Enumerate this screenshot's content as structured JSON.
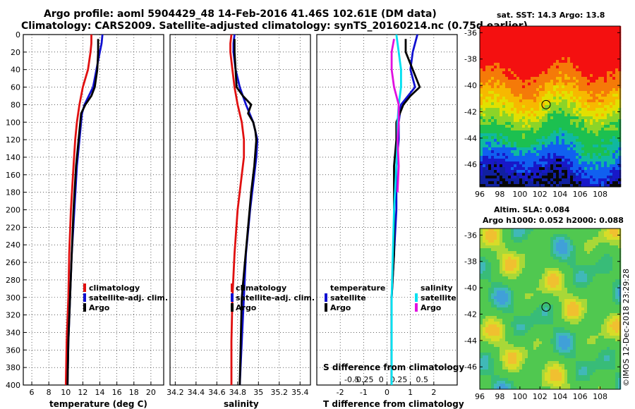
{
  "title": {
    "line1": "Argo profile: aoml 5904429_48 14-Feb-2016 41.46S 102.61E (DM data)",
    "line2": "Climatology: CARS2009. Satellite-adjusted climatology: synTS_20160214.nc (0.75d earlier)"
  },
  "colors": {
    "climatology": "#e01010",
    "satellite": "#1010d0",
    "argo": "#000000",
    "sat_salinity": "#00e0f0",
    "argo_salinity": "#e010e0"
  },
  "chart_data": [
    {
      "id": "temperature",
      "type": "line",
      "xlabel": "temperature (deg C)",
      "ylabel": "pressure",
      "xlim": [
        5,
        21.5
      ],
      "ylim": [
        400,
        0
      ],
      "xticks": [
        "6",
        "8",
        "10",
        "12",
        "14",
        "16",
        "18",
        "20"
      ],
      "xtick_values": [
        6,
        8,
        10,
        12,
        14,
        16,
        18,
        20
      ],
      "yticks": [
        "0",
        "20",
        "40",
        "60",
        "80",
        "100",
        "120",
        "140",
        "160",
        "180",
        "200",
        "220",
        "240",
        "260",
        "280",
        "300",
        "320",
        "340",
        "360",
        "380",
        "400"
      ],
      "legend": [
        "climatology",
        "satellite-adj. clim.",
        "Argo"
      ],
      "series": [
        {
          "name": "climatology",
          "color_key": "climatology",
          "depth": [
            0,
            10,
            20,
            40,
            60,
            80,
            100,
            120,
            150,
            200,
            250,
            300,
            350,
            400
          ],
          "values": [
            13.0,
            13.0,
            12.9,
            12.6,
            12.0,
            11.6,
            11.3,
            11.1,
            10.9,
            10.6,
            10.4,
            10.3,
            10.1,
            10.0
          ]
        },
        {
          "name": "satellite-adj. clim.",
          "color_key": "satellite",
          "depth": [
            0,
            10,
            20,
            40,
            60,
            80,
            90,
            100,
            120,
            150,
            200,
            250,
            300,
            350,
            400
          ],
          "values": [
            14.3,
            14.2,
            14.0,
            13.6,
            13.2,
            12.2,
            11.9,
            11.8,
            11.6,
            11.3,
            11.0,
            10.7,
            10.5,
            10.3,
            10.2
          ]
        },
        {
          "name": "Argo",
          "color_key": "argo",
          "depth": [
            5,
            20,
            40,
            60,
            70,
            80,
            90,
            100,
            120,
            150,
            200,
            250,
            300,
            350,
            400
          ],
          "values": [
            13.8,
            13.8,
            13.7,
            13.4,
            13.0,
            12.3,
            11.8,
            11.7,
            11.5,
            11.2,
            10.9,
            10.7,
            10.5,
            10.3,
            10.2
          ]
        }
      ]
    },
    {
      "id": "salinity",
      "type": "line",
      "xlabel": "salinity",
      "ylabel": "pressure",
      "xlim": [
        34.15,
        35.5
      ],
      "ylim": [
        400,
        0
      ],
      "xticks": [
        "34.2",
        "34.4",
        "34.6",
        "34.8",
        "35",
        "35.2",
        "35.4"
      ],
      "xtick_values": [
        34.2,
        34.4,
        34.6,
        34.8,
        35.0,
        35.2,
        35.4
      ],
      "legend": [
        "climatology",
        "satellite-adj. clim.",
        "Argo"
      ],
      "series": [
        {
          "name": "climatology",
          "color_key": "climatology",
          "depth": [
            0,
            10,
            20,
            40,
            60,
            80,
            100,
            120,
            140,
            160,
            200,
            250,
            300,
            350,
            400
          ],
          "values": [
            34.74,
            34.73,
            34.73,
            34.75,
            34.77,
            34.8,
            34.84,
            34.86,
            34.86,
            34.84,
            34.8,
            34.77,
            34.75,
            34.74,
            34.74
          ]
        },
        {
          "name": "satellite-adj. clim.",
          "color_key": "satellite",
          "depth": [
            0,
            10,
            20,
            40,
            60,
            80,
            100,
            120,
            140,
            160,
            200,
            250,
            300,
            350,
            400
          ],
          "values": [
            34.77,
            34.76,
            34.76,
            34.78,
            34.82,
            34.88,
            34.95,
            34.99,
            34.98,
            34.96,
            34.92,
            34.88,
            34.86,
            34.84,
            34.82
          ]
        },
        {
          "name": "Argo",
          "color_key": "argo",
          "depth": [
            5,
            20,
            40,
            60,
            70,
            80,
            90,
            100,
            110,
            120,
            150,
            180,
            220,
            260,
            300,
            350,
            400
          ],
          "values": [
            34.77,
            34.77,
            34.78,
            34.79,
            34.85,
            34.93,
            34.9,
            34.95,
            34.97,
            34.98,
            34.96,
            34.93,
            34.9,
            34.87,
            34.84,
            34.83,
            34.82
          ]
        }
      ]
    },
    {
      "id": "difference",
      "type": "line",
      "xlabel": "T difference from climatology",
      "xlabel_top": "S difference from climatology",
      "xlim": [
        -3,
        3
      ],
      "ylim": [
        400,
        0
      ],
      "xticks": [
        "-2",
        "-1",
        "0",
        "1",
        "2"
      ],
      "xtick_values": [
        -2,
        -1,
        0,
        1,
        2
      ],
      "sticks": [
        "-0.5",
        "-0.25",
        "0",
        "0.25",
        "0.5"
      ],
      "stick_values": [
        -1.5,
        -1,
        -0.25,
        0.5,
        1.5
      ],
      "legend_temperature_title": "temperature",
      "legend_salinity_title": "salinity",
      "legend_temperature": [
        "satellite",
        "Argo"
      ],
      "legend_salinity": [
        "satellite",
        "Argo"
      ],
      "series": [
        {
          "name": "satellite T",
          "color_key": "satellite",
          "depth": [
            0,
            10,
            20,
            40,
            60,
            80,
            100,
            120,
            150,
            200,
            250,
            300,
            350,
            400
          ],
          "values": [
            1.3,
            1.2,
            1.1,
            1.0,
            1.2,
            0.6,
            0.5,
            0.5,
            0.4,
            0.4,
            0.3,
            0.2,
            0.2,
            0.2
          ]
        },
        {
          "name": "Argo T",
          "color_key": "argo",
          "depth": [
            5,
            20,
            40,
            60,
            70,
            80,
            100,
            120,
            150,
            200,
            250,
            300,
            350,
            400
          ],
          "values": [
            0.8,
            0.8,
            1.1,
            1.4,
            1.0,
            0.7,
            0.4,
            0.4,
            0.3,
            0.3,
            0.3,
            0.2,
            0.2,
            0.2
          ]
        },
        {
          "name": "satellite S",
          "color_key": "sat_salinity",
          "depth": [
            0,
            20,
            40,
            60,
            80,
            100,
            120,
            150,
            200,
            250,
            300,
            350,
            400
          ],
          "values": [
            0.4,
            0.5,
            0.6,
            0.6,
            0.5,
            0.45,
            0.45,
            0.4,
            0.3,
            0.25,
            0.2,
            0.2,
            0.2
          ]
        },
        {
          "name": "Argo S",
          "color_key": "argo_salinity",
          "depth": [
            5,
            20,
            40,
            60,
            80,
            100,
            120,
            150,
            180
          ],
          "values": [
            0.3,
            0.2,
            0.2,
            0.3,
            0.5,
            0.5,
            0.45,
            0.5,
            0.45
          ]
        }
      ]
    }
  ],
  "sst_map": {
    "title": "sat. SST: 14.3 Argo: 13.8",
    "lat_ticks": [
      "-36",
      "-38",
      "-40",
      "-42",
      "-44",
      "-46"
    ],
    "lat_values": [
      -36,
      -38,
      -40,
      -42,
      -44,
      -46
    ],
    "lon_ticks": [
      "96",
      "98",
      "100",
      "102",
      "104",
      "106",
      "108"
    ],
    "lon_values": [
      96,
      98,
      100,
      102,
      104,
      106,
      108
    ],
    "lon_range": [
      96,
      110
    ],
    "lat_range": [
      -35.5,
      -47.7
    ],
    "argo_position": {
      "lon": 102.61,
      "lat": -41.46
    }
  },
  "sla_map": {
    "title_line1": "Altim. SLA: 0.084",
    "title_line2": "Argo h1000: 0.052 h2000: 0.088",
    "lat_ticks": [
      "-36",
      "-38",
      "-40",
      "-42",
      "-44",
      "-46"
    ],
    "lat_values": [
      -36,
      -38,
      -40,
      -42,
      -44,
      -46
    ],
    "lon_ticks": [
      "96",
      "98",
      "100",
      "102",
      "104",
      "106",
      "108"
    ],
    "lon_values": [
      96,
      98,
      100,
      102,
      104,
      106,
      108
    ],
    "lon_range": [
      96,
      110
    ],
    "lat_range": [
      -35.5,
      -47.7
    ],
    "argo_position": {
      "lon": 102.61,
      "lat": -41.46
    }
  },
  "credit": "©IMOS 12-Dec-2018 23:29:28"
}
